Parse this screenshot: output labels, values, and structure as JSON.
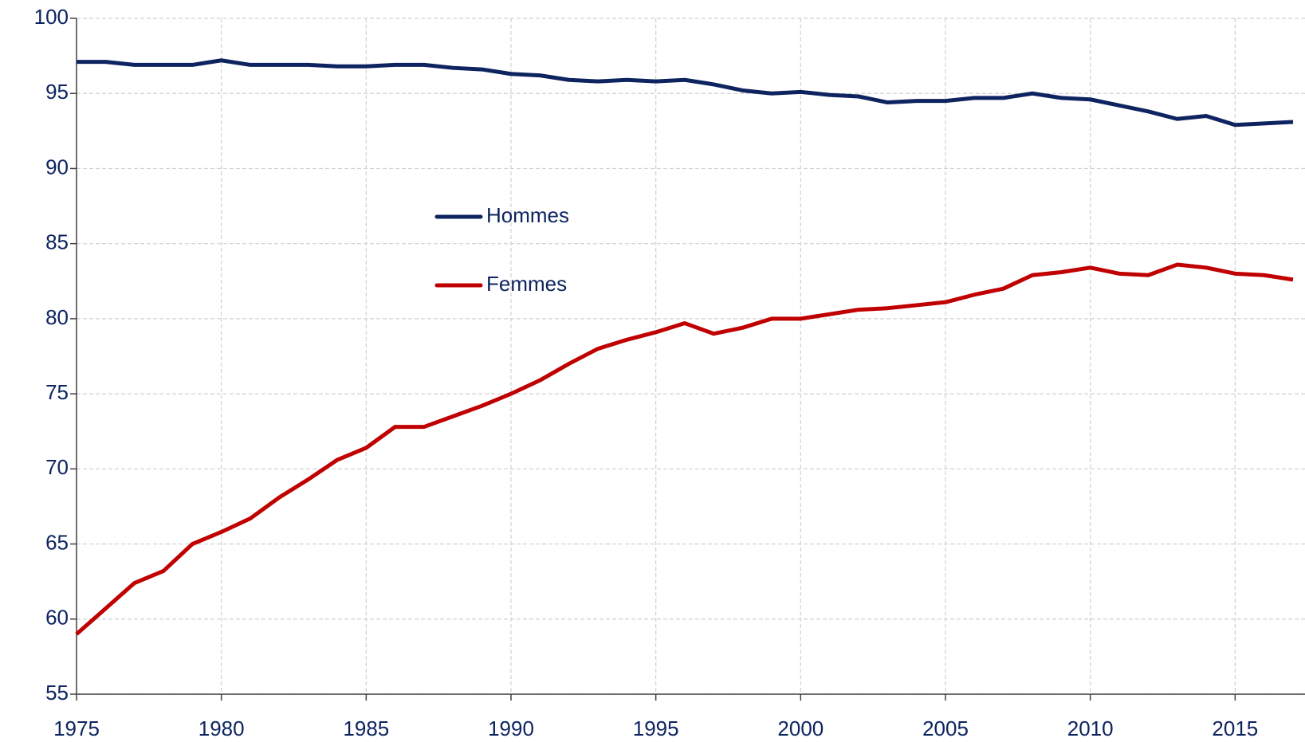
{
  "chart_data": {
    "type": "line",
    "x": [
      1975,
      1976,
      1977,
      1978,
      1979,
      1980,
      1981,
      1982,
      1983,
      1984,
      1985,
      1986,
      1987,
      1988,
      1989,
      1990,
      1991,
      1992,
      1993,
      1994,
      1995,
      1996,
      1997,
      1998,
      1999,
      2000,
      2001,
      2002,
      2003,
      2004,
      2005,
      2006,
      2007,
      2008,
      2009,
      2010,
      2011,
      2012,
      2013,
      2014,
      2015,
      2016,
      2017
    ],
    "series": [
      {
        "name": "Hommes",
        "color": "#0d2460",
        "values": [
          97.1,
          97.1,
          96.9,
          96.9,
          96.9,
          97.2,
          96.9,
          96.9,
          96.9,
          96.8,
          96.8,
          96.9,
          96.9,
          96.7,
          96.6,
          96.3,
          96.2,
          95.9,
          95.8,
          95.9,
          95.8,
          95.9,
          95.6,
          95.2,
          95.0,
          95.1,
          94.9,
          94.8,
          94.4,
          94.5,
          94.5,
          94.7,
          94.7,
          95.0,
          94.7,
          94.6,
          94.2,
          93.8,
          93.3,
          93.5,
          92.9,
          93.0,
          93.1
        ]
      },
      {
        "name": "Femmes",
        "color": "#c00000",
        "values": [
          59.0,
          60.7,
          62.4,
          63.2,
          65.0,
          65.8,
          66.7,
          68.1,
          69.3,
          70.6,
          71.4,
          72.8,
          72.8,
          73.5,
          74.2,
          75.0,
          75.9,
          77.0,
          78.0,
          78.6,
          79.1,
          79.7,
          79.0,
          79.4,
          80.0,
          80.0,
          80.3,
          80.6,
          80.7,
          80.9,
          81.1,
          81.6,
          82.0,
          82.9,
          83.1,
          83.4,
          83.0,
          82.9,
          83.6,
          83.4,
          83.0,
          82.9,
          82.6
        ]
      }
    ],
    "xlim": [
      1975,
      2017
    ],
    "xticks": [
      1975,
      1980,
      1985,
      1990,
      1995,
      2000,
      2005,
      2010,
      2015
    ],
    "ylim": [
      55,
      100
    ],
    "yticks": [
      55,
      60,
      65,
      70,
      75,
      80,
      85,
      90,
      95,
      100
    ],
    "grid": true
  }
}
